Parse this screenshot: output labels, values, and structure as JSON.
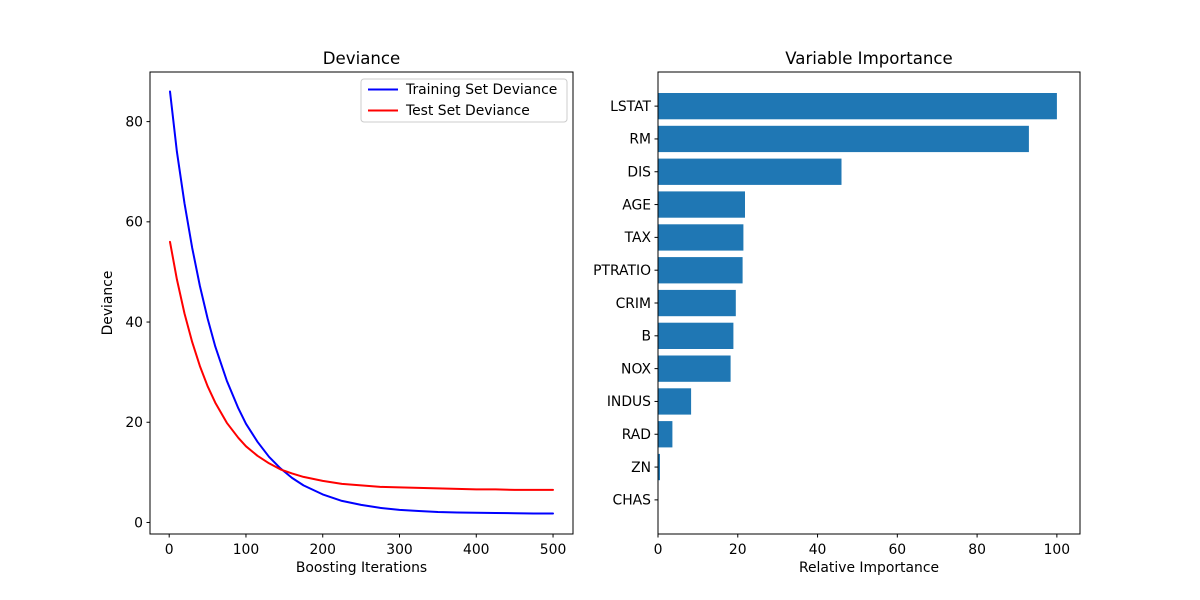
{
  "figure": {
    "background": "#ffffff",
    "axis_color": "#000000",
    "legend_border_color": "#cccccc"
  },
  "chart_data": [
    {
      "type": "line",
      "title": "Deviance",
      "xlabel": "Boosting Iterations",
      "ylabel": "Deviance",
      "xlim": [
        -25,
        526
      ],
      "ylim": [
        -2.3,
        89.9
      ],
      "x_ticks": [
        0,
        100,
        200,
        300,
        400,
        500
      ],
      "y_ticks": [
        0,
        20,
        40,
        60,
        80
      ],
      "grid": false,
      "legend_position": "upper right",
      "series": [
        {
          "name": "Training Set Deviance",
          "color": "#0000ff",
          "x": [
            1,
            10,
            20,
            30,
            40,
            50,
            60,
            75,
            90,
            100,
            115,
            130,
            145,
            160,
            175,
            200,
            225,
            250,
            275,
            300,
            325,
            350,
            375,
            400,
            425,
            450,
            475,
            500
          ],
          "y": [
            86,
            74,
            63.7,
            54.8,
            47.2,
            40.7,
            35.1,
            28.3,
            22.8,
            19.7,
            16.1,
            13.1,
            10.8,
            8.9,
            7.4,
            5.6,
            4.3,
            3.5,
            2.9,
            2.5,
            2.3,
            2.1,
            2.0,
            1.95,
            1.9,
            1.85,
            1.8,
            1.8
          ]
        },
        {
          "name": "Test Set Deviance",
          "color": "#ff0000",
          "x": [
            1,
            10,
            20,
            30,
            40,
            50,
            60,
            75,
            90,
            100,
            115,
            130,
            145,
            160,
            175,
            200,
            225,
            250,
            275,
            300,
            325,
            350,
            375,
            400,
            425,
            450,
            475,
            500
          ],
          "y": [
            56,
            48.5,
            41.7,
            36.0,
            31.2,
            27.2,
            23.9,
            19.9,
            16.9,
            15.2,
            13.3,
            11.8,
            10.6,
            9.8,
            9.1,
            8.3,
            7.7,
            7.4,
            7.1,
            7.0,
            6.9,
            6.8,
            6.7,
            6.6,
            6.6,
            6.5,
            6.5,
            6.5
          ]
        }
      ]
    },
    {
      "type": "bar",
      "orientation": "horizontal",
      "title": "Variable Importance",
      "xlabel": "Relative Importance",
      "categories": [
        "LSTAT",
        "RM",
        "DIS",
        "AGE",
        "TAX",
        "PTRATIO",
        "CRIM",
        "B",
        "NOX",
        "INDUS",
        "RAD",
        "ZN",
        "CHAS"
      ],
      "values": [
        100,
        93,
        46,
        21.8,
        21.4,
        21.2,
        19.5,
        18.9,
        18.2,
        8.3,
        3.6,
        0.5,
        0.1
      ],
      "bar_color": "#1f77b4",
      "x_ticks": [
        0,
        20,
        40,
        60,
        80,
        100
      ],
      "xlim": [
        0,
        105.8
      ],
      "grid": false
    }
  ]
}
